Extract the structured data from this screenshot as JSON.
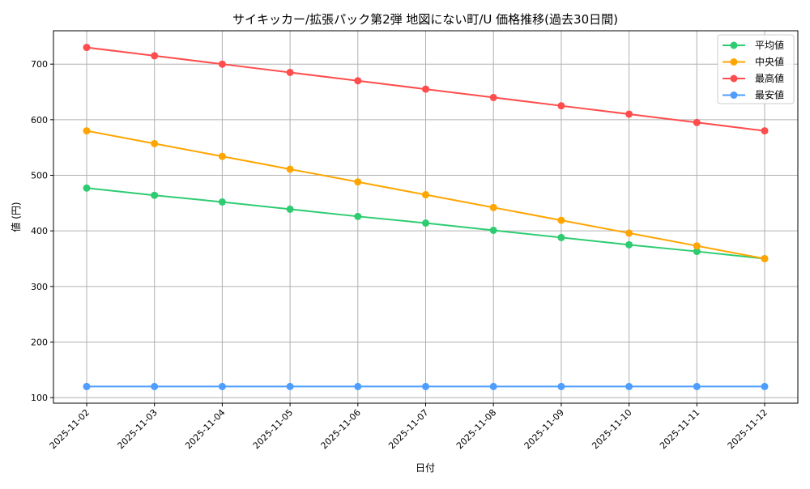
{
  "chart_data": {
    "type": "line",
    "title": "サイキッカー/拡張パック第2弾 地図にない町/U 価格推移(過去30日間)",
    "xlabel": "日付",
    "ylabel": "値 (円)",
    "x": [
      "2025-11-02",
      "2025-11-03",
      "2025-11-04",
      "2025-11-05",
      "2025-11-06",
      "2025-11-07",
      "2025-11-08",
      "2025-11-09",
      "2025-11-10",
      "2025-11-11",
      "2025-11-12"
    ],
    "ylim": [
      90,
      760
    ],
    "yticks": [
      100,
      200,
      300,
      400,
      500,
      600,
      700
    ],
    "grid": true,
    "legend_position": "top-right",
    "series": [
      {
        "name": "平均値",
        "color": "#2ecc71",
        "values": [
          477,
          464,
          452,
          439,
          426,
          414,
          401,
          388,
          375,
          363,
          350
        ]
      },
      {
        "name": "中央値",
        "color": "#ffa500",
        "values": [
          580,
          557,
          534,
          511,
          488,
          465,
          442,
          419,
          396,
          373,
          350
        ]
      },
      {
        "name": "最高値",
        "color": "#ff4d4d",
        "values": [
          730,
          715,
          700,
          685,
          670,
          655,
          640,
          625,
          610,
          595,
          580
        ]
      },
      {
        "name": "最安値",
        "color": "#4d9eff",
        "values": [
          120,
          120,
          120,
          120,
          120,
          120,
          120,
          120,
          120,
          120,
          120
        ]
      }
    ]
  }
}
